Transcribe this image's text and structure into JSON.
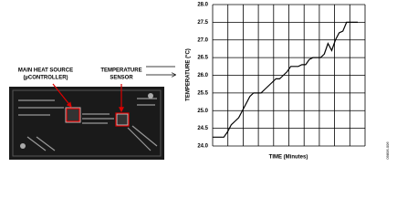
{
  "figure": {
    "labels": [
      "MAIN HEAT SOURCE",
      "(µCONTROLLER)",
      "TEMPERATURE",
      "SENSOR"
    ],
    "figure_id": "09806-006"
  },
  "chart_data": {
    "type": "line",
    "ylabel": "TEMPERATURE (°C)",
    "xlabel": "TIME (Minutes)",
    "series": [
      {
        "color": "#000000",
        "values": [
          24.25,
          24.25,
          24.25,
          24.25,
          24.4,
          24.6,
          24.7,
          24.8,
          25.0,
          25.2,
          25.4,
          25.5,
          25.5,
          25.5,
          25.6,
          25.7,
          25.8,
          25.9,
          25.9,
          26.0,
          26.1,
          26.25,
          26.25,
          26.25,
          26.3,
          26.3,
          26.45,
          26.5,
          26.5,
          26.5,
          26.6,
          26.9,
          26.7,
          27.0,
          27.2,
          27.25,
          27.5,
          27.5,
          27.5,
          27.5
        ]
      }
    ],
    "ylim": [
      24,
      28
    ],
    "yticks": [
      {
        "value": 24,
        "label": "24.0"
      },
      24.5,
      {
        "value": 25,
        "label": "25.0"
      },
      25.5,
      {
        "value": 26,
        "label": "26.0"
      },
      26.5,
      {
        "value": 27,
        "label": "27.0"
      },
      27.5,
      {
        "value": 28,
        "label": "28.0"
      }
    ],
    "grid": true
  }
}
